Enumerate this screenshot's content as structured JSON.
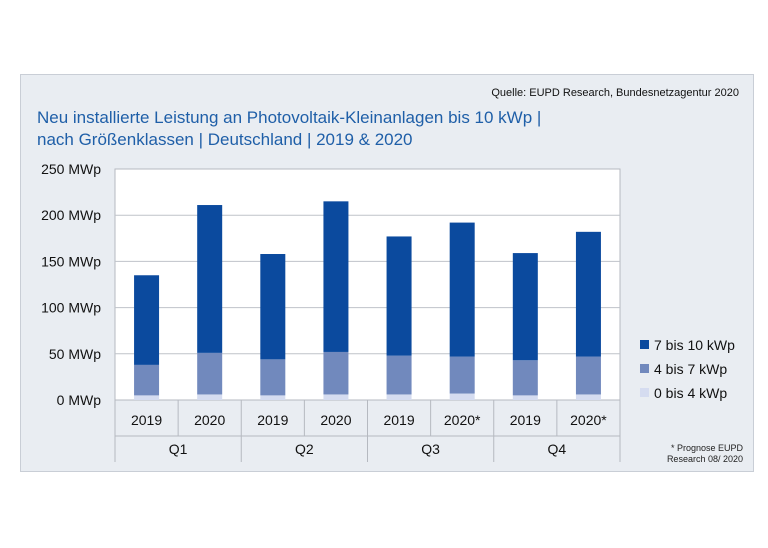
{
  "source": "Quelle: EUPD Research, Bundesnetzagentur 2020",
  "title_line1": "Neu installierte Leistung an Photovoltaik-Kleinanlagen bis 10 kWp |",
  "title_line2": "nach Größenklassen | Deutschland | 2019 & 2020",
  "note_line1": "* Prognose EUPD",
  "note_line2": "Research 08/ 2020",
  "chart_data": {
    "type": "bar",
    "stacked": true,
    "title": "Neu installierte Leistung an Photovoltaik-Kleinanlagen bis 10 kWp | nach Größenklassen | Deutschland | 2019 & 2020",
    "categories": [
      "2019",
      "2020",
      "2019",
      "2020",
      "2019",
      "2020*",
      "2019",
      "2020*"
    ],
    "groups": [
      "Q1",
      "Q2",
      "Q3",
      "Q4"
    ],
    "ylim": [
      0,
      250
    ],
    "yticks": [
      "0 MWp",
      "50 MWp",
      "100 MWp",
      "150 MWp",
      "200 MWp",
      "250 MWp"
    ],
    "grid": true,
    "legend": "right",
    "series": [
      {
        "name": "0 bis 4 kWp",
        "color": "#d5dcf0",
        "values": [
          5,
          6,
          5,
          6,
          6,
          7,
          5,
          6
        ]
      },
      {
        "name": "4 bis 7 kWp",
        "color": "#7189bd",
        "values": [
          33,
          45,
          39,
          46,
          42,
          40,
          38,
          41
        ]
      },
      {
        "name": "7 bis 10 kWp",
        "color": "#0b4a9e",
        "values": [
          97,
          160,
          114,
          163,
          129,
          145,
          116,
          135
        ]
      }
    ]
  }
}
